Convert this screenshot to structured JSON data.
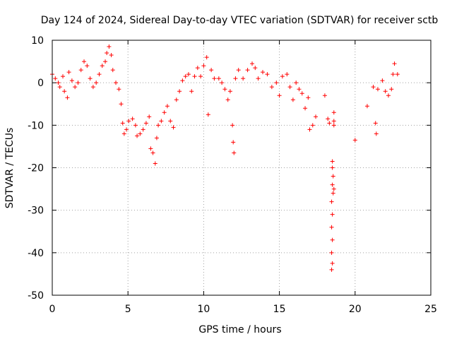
{
  "chart_data": {
    "type": "scatter",
    "title": "Day 124 of 2024, Sidereal Day-to-day VTEC variation (SDTVAR) for receiver sctb",
    "xlabel": "GPS time / hours",
    "ylabel": "SDTVAR / TECUs",
    "xlim": [
      0,
      25
    ],
    "ylim": [
      -50,
      10
    ],
    "x_ticks": [
      0,
      5,
      10,
      15,
      20,
      25
    ],
    "y_ticks": [
      10,
      0,
      -10,
      -20,
      -30,
      -40,
      -50
    ],
    "grid": true,
    "marker": "+",
    "colors": {
      "series": "#ff0000",
      "axis": "#000000",
      "grid": "#a0a0a0",
      "background": "#ffffff"
    },
    "series": [
      {
        "name": "SDTVAR",
        "key_points": [
          [
            0.0,
            2.0
          ],
          [
            0.2,
            1.0
          ],
          [
            0.4,
            0.0
          ],
          [
            0.5,
            -1.0
          ],
          [
            0.7,
            1.5
          ],
          [
            0.8,
            -2.0
          ],
          [
            1.0,
            -3.5
          ],
          [
            1.1,
            2.5
          ],
          [
            1.3,
            0.5
          ],
          [
            1.5,
            -1.0
          ],
          [
            1.7,
            0.0
          ],
          [
            1.9,
            3.0
          ],
          [
            2.1,
            5.0
          ],
          [
            2.3,
            4.0
          ],
          [
            2.5,
            1.0
          ],
          [
            2.7,
            -1.0
          ],
          [
            2.9,
            0.0
          ],
          [
            3.1,
            2.0
          ],
          [
            3.3,
            4.0
          ],
          [
            3.5,
            5.0
          ],
          [
            3.6,
            7.0
          ],
          [
            3.75,
            8.5
          ],
          [
            3.9,
            6.5
          ],
          [
            4.0,
            3.0
          ],
          [
            4.2,
            0.0
          ],
          [
            4.4,
            -1.5
          ],
          [
            4.55,
            -5.0
          ],
          [
            4.65,
            -9.5
          ],
          [
            4.75,
            -12.0
          ],
          [
            4.9,
            -11.0
          ],
          [
            5.05,
            -9.0
          ],
          [
            5.3,
            -8.5
          ],
          [
            5.5,
            -10.0
          ],
          [
            5.6,
            -12.5
          ],
          [
            5.8,
            -12.0
          ],
          [
            6.0,
            -11.0
          ],
          [
            6.2,
            -9.5
          ],
          [
            6.4,
            -8.0
          ],
          [
            6.5,
            -15.5
          ],
          [
            6.65,
            -16.5
          ],
          [
            6.8,
            -19.0
          ],
          [
            6.9,
            -13.0
          ],
          [
            7.0,
            -10.0
          ],
          [
            7.2,
            -9.0
          ],
          [
            7.4,
            -7.0
          ],
          [
            7.6,
            -5.5
          ],
          [
            7.8,
            -9.0
          ],
          [
            8.0,
            -10.5
          ],
          [
            8.2,
            -4.0
          ],
          [
            8.4,
            -2.0
          ],
          [
            8.6,
            0.5
          ],
          [
            8.8,
            1.5
          ],
          [
            9.0,
            2.0
          ],
          [
            9.2,
            -2.0
          ],
          [
            9.4,
            1.5
          ],
          [
            9.6,
            3.5
          ],
          [
            9.8,
            1.5
          ],
          [
            10.0,
            4.0
          ],
          [
            10.2,
            6.0
          ],
          [
            10.3,
            -7.5
          ],
          [
            10.5,
            3.0
          ],
          [
            10.7,
            1.0
          ],
          [
            11.0,
            1.0
          ],
          [
            11.2,
            0.0
          ],
          [
            11.4,
            -1.5
          ],
          [
            11.6,
            -4.0
          ],
          [
            11.75,
            -2.0
          ],
          [
            11.9,
            -10.0
          ],
          [
            11.95,
            -14.0
          ],
          [
            12.0,
            -16.5
          ],
          [
            12.1,
            1.0
          ],
          [
            12.3,
            3.0
          ],
          [
            12.6,
            1.0
          ],
          [
            12.9,
            3.0
          ],
          [
            13.2,
            4.5
          ],
          [
            13.4,
            3.5
          ],
          [
            13.6,
            1.0
          ],
          [
            13.9,
            2.5
          ],
          [
            14.2,
            2.0
          ],
          [
            14.5,
            -1.0
          ],
          [
            14.8,
            0.0
          ],
          [
            15.0,
            -3.0
          ],
          [
            15.2,
            1.5
          ],
          [
            15.5,
            2.0
          ],
          [
            15.7,
            -1.0
          ],
          [
            15.9,
            -4.0
          ],
          [
            16.1,
            0.0
          ],
          [
            16.3,
            -1.5
          ],
          [
            16.5,
            -2.5
          ],
          [
            16.7,
            -6.0
          ],
          [
            16.9,
            -3.5
          ],
          [
            17.0,
            -11.0
          ],
          [
            17.2,
            -10.0
          ],
          [
            17.4,
            -8.0
          ],
          [
            18.0,
            -3.0
          ],
          [
            18.2,
            -8.5
          ],
          [
            18.3,
            -9.5
          ],
          [
            18.5,
            -18.5
          ],
          [
            18.5,
            -20.0
          ],
          [
            18.55,
            -22.0
          ],
          [
            18.5,
            -24.0
          ],
          [
            18.55,
            -26.0
          ],
          [
            18.45,
            -28.0
          ],
          [
            18.5,
            -31.0
          ],
          [
            18.45,
            -34.0
          ],
          [
            18.5,
            -37.0
          ],
          [
            18.45,
            -40.0
          ],
          [
            18.5,
            -42.5
          ],
          [
            18.45,
            -44.0
          ],
          [
            18.6,
            -7.0
          ],
          [
            18.6,
            -9.0
          ],
          [
            18.6,
            -10.0
          ],
          [
            18.6,
            -25.0
          ],
          [
            20.0,
            -13.5
          ],
          [
            20.8,
            -5.5
          ],
          [
            21.2,
            -1.0
          ],
          [
            21.35,
            -9.5
          ],
          [
            21.4,
            -12.0
          ],
          [
            21.5,
            -1.5
          ],
          [
            21.8,
            0.5
          ],
          [
            22.0,
            -2.0
          ],
          [
            22.2,
            -3.0
          ],
          [
            22.4,
            -1.5
          ],
          [
            22.5,
            2.0
          ],
          [
            22.6,
            4.5
          ],
          [
            22.8,
            2.0
          ]
        ]
      }
    ]
  }
}
